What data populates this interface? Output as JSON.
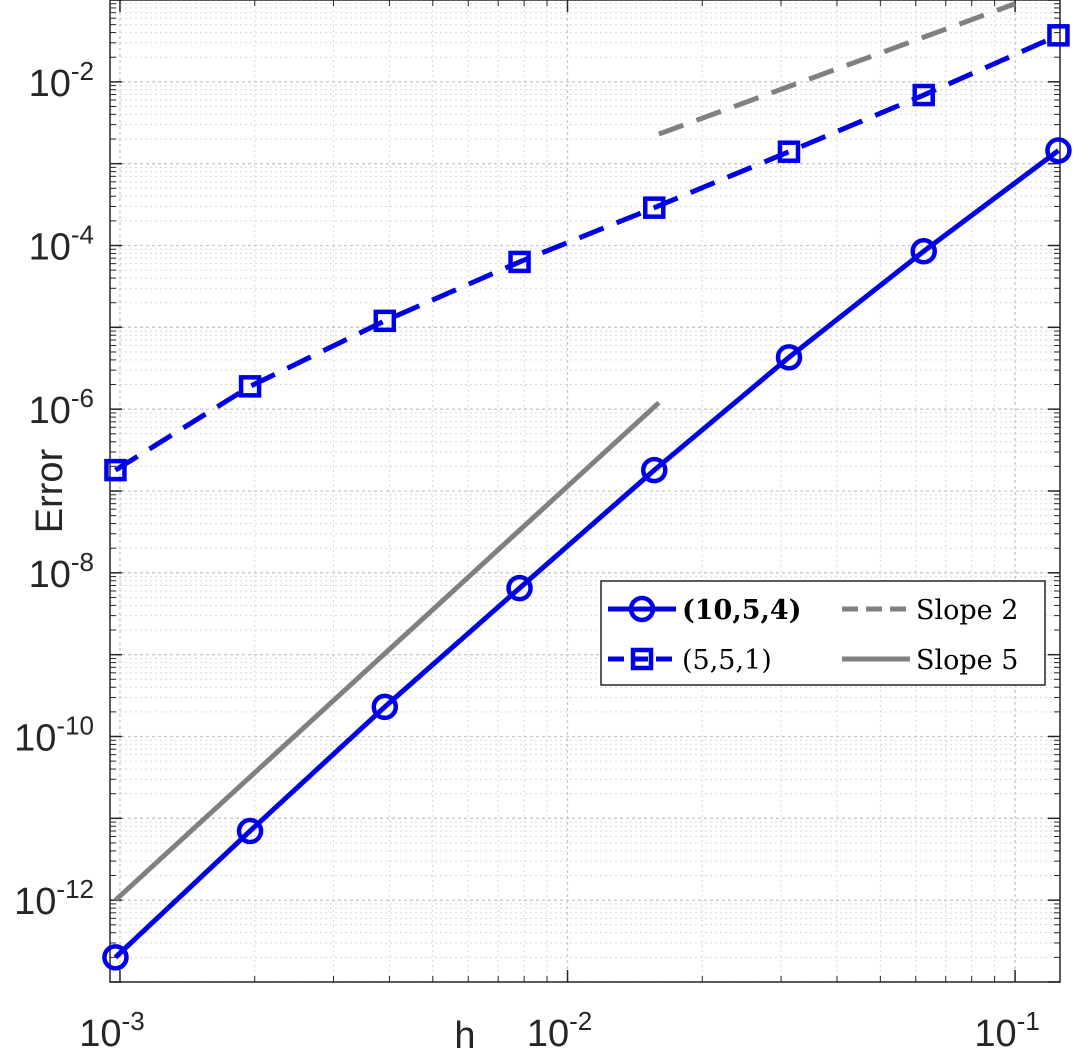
{
  "chart_data": {
    "type": "line",
    "xscale": "log",
    "yscale": "log",
    "xlim": [
      0.00095,
      0.126
    ],
    "ylim": [
      1e-13,
      0.1
    ],
    "xlabel": "h",
    "ylabel": "Error",
    "grid": true,
    "legend_position": "right-middle",
    "xticks": [
      {
        "base": "10",
        "exp": "-3",
        "value": 0.001
      },
      {
        "base": "10",
        "exp": "-2",
        "value": 0.01
      },
      {
        "base": "10",
        "exp": "-1",
        "value": 0.1
      }
    ],
    "yticks": [
      {
        "base": "10",
        "exp": "-2",
        "value": 0.01
      },
      {
        "base": "10",
        "exp": "-4",
        "value": 0.0001
      },
      {
        "base": "10",
        "exp": "-6",
        "value": 1e-06
      },
      {
        "base": "10",
        "exp": "-8",
        "value": 1e-08
      },
      {
        "base": "10",
        "exp": "-10",
        "value": 1e-10
      },
      {
        "base": "10",
        "exp": "-12",
        "value": 1e-12
      }
    ],
    "series": [
      {
        "name": "(10,5,4)",
        "bold": true,
        "color": "#0000e6",
        "line_style": "solid",
        "marker": "circle",
        "x": [
          0.000977,
          0.001953,
          0.003906,
          0.007813,
          0.015625,
          0.03125,
          0.0625,
          0.125
        ],
        "y": [
          2e-13,
          7e-12,
          2.3e-10,
          6.5e-09,
          1.8e-07,
          4.3e-06,
          8.5e-05,
          0.00145
        ]
      },
      {
        "name": "(5,5,1)",
        "bold": false,
        "color": "#0000e6",
        "line_style": "dashed",
        "marker": "square",
        "x": [
          0.000977,
          0.001953,
          0.003906,
          0.007813,
          0.015625,
          0.03125,
          0.0625,
          0.125
        ],
        "y": [
          1.8e-07,
          1.9e-06,
          1.2e-05,
          6.3e-05,
          0.00029,
          0.0014,
          0.0069,
          0.037
        ]
      },
      {
        "name": "Slope 2",
        "bold": false,
        "color": "#808080",
        "line_style": "dashed",
        "marker": "none",
        "x": [
          0.016,
          0.1
        ],
        "y": [
          0.0023,
          0.09
        ]
      },
      {
        "name": "Slope 5",
        "bold": false,
        "color": "#808080",
        "line_style": "solid",
        "marker": "none",
        "x": [
          0.000977,
          0.016
        ],
        "y": [
          1e-12,
          1.2e-06
        ]
      }
    ]
  }
}
